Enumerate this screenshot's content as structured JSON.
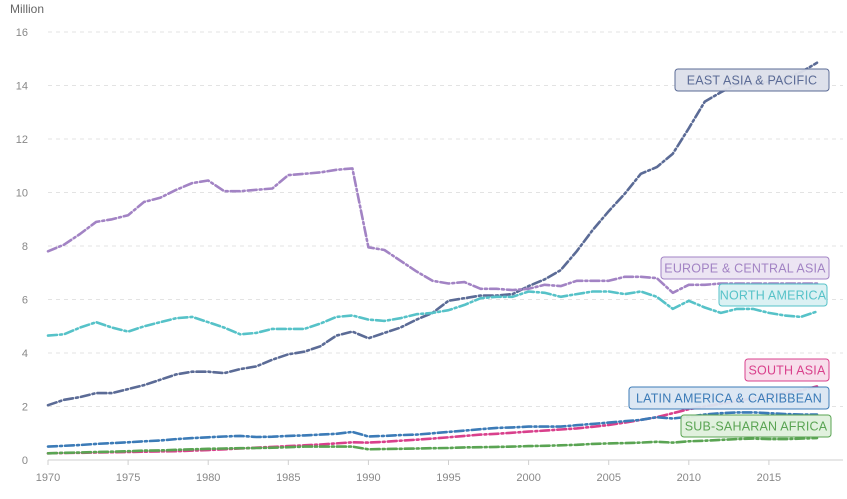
{
  "chart_data": {
    "type": "line",
    "title": "",
    "ylabel": "Million",
    "xlabel": "",
    "ylim": [
      0,
      16
    ],
    "xlim": [
      1970,
      2019
    ],
    "y_ticks": [
      0,
      2,
      4,
      6,
      8,
      10,
      12,
      14,
      16
    ],
    "x_ticks": [
      1970,
      1975,
      1980,
      1985,
      1990,
      1995,
      2000,
      2005,
      2010,
      2015
    ],
    "grid": true,
    "legend": "inline-right",
    "x": [
      1970,
      1971,
      1972,
      1973,
      1974,
      1975,
      1976,
      1977,
      1978,
      1979,
      1980,
      1981,
      1982,
      1983,
      1984,
      1985,
      1986,
      1987,
      1988,
      1989,
      1990,
      1991,
      1992,
      1993,
      1994,
      1995,
      1996,
      1997,
      1998,
      1999,
      2000,
      2001,
      2002,
      2003,
      2004,
      2005,
      2006,
      2007,
      2008,
      2009,
      2010,
      2011,
      2012,
      2013,
      2014,
      2015,
      2016,
      2017,
      2018
    ],
    "series": [
      {
        "name": "EAST ASIA & PACIFIC",
        "color": "#5b6b96",
        "label_bg": "#dcdfea",
        "values": [
          2.05,
          2.25,
          2.35,
          2.5,
          2.5,
          2.65,
          2.8,
          3.0,
          3.2,
          3.3,
          3.3,
          3.25,
          3.4,
          3.5,
          3.75,
          3.95,
          4.05,
          4.25,
          4.65,
          4.8,
          4.55,
          4.75,
          4.95,
          5.25,
          5.5,
          5.95,
          6.05,
          6.15,
          6.15,
          6.2,
          6.5,
          6.75,
          7.1,
          7.8,
          8.6,
          9.3,
          9.95,
          10.7,
          10.95,
          11.45,
          12.4,
          13.4,
          13.75,
          14.05,
          14.05,
          14.15,
          14.25,
          14.5,
          14.85
        ]
      },
      {
        "name": "EUROPE & CENTRAL ASIA",
        "color": "#a283c4",
        "label_bg": "#ebe4f2",
        "values": [
          7.8,
          8.05,
          8.45,
          8.9,
          9.0,
          9.15,
          9.65,
          9.8,
          10.1,
          10.35,
          10.45,
          10.05,
          10.05,
          10.1,
          10.15,
          10.65,
          10.7,
          10.75,
          10.85,
          10.9,
          7.95,
          7.85,
          7.45,
          7.05,
          6.7,
          6.6,
          6.65,
          6.4,
          6.4,
          6.35,
          6.4,
          6.55,
          6.5,
          6.7,
          6.7,
          6.7,
          6.85,
          6.85,
          6.8,
          6.25,
          6.55,
          6.55,
          6.6,
          6.6,
          6.6,
          6.6,
          6.6,
          6.6,
          6.6
        ]
      },
      {
        "name": "NORTH AMERICA",
        "color": "#56c2c8",
        "label_bg": "#d9f0f2",
        "values": [
          4.65,
          4.7,
          4.95,
          5.15,
          4.95,
          4.8,
          5.0,
          5.15,
          5.3,
          5.35,
          5.15,
          4.95,
          4.7,
          4.75,
          4.9,
          4.9,
          4.9,
          5.1,
          5.35,
          5.4,
          5.25,
          5.2,
          5.3,
          5.45,
          5.5,
          5.6,
          5.8,
          6.05,
          6.1,
          6.1,
          6.3,
          6.25,
          6.1,
          6.2,
          6.3,
          6.3,
          6.2,
          6.3,
          6.1,
          5.65,
          5.95,
          5.7,
          5.5,
          5.65,
          5.65,
          5.5,
          5.4,
          5.35,
          5.55
        ]
      },
      {
        "name": "SOUTH ASIA",
        "color": "#d9408c",
        "label_bg": "#f7dcea",
        "values": [
          0.25,
          0.26,
          0.27,
          0.28,
          0.29,
          0.3,
          0.31,
          0.32,
          0.33,
          0.35,
          0.37,
          0.4,
          0.43,
          0.46,
          0.49,
          0.52,
          0.55,
          0.58,
          0.62,
          0.66,
          0.65,
          0.68,
          0.72,
          0.76,
          0.8,
          0.85,
          0.9,
          0.95,
          0.98,
          1.02,
          1.06,
          1.1,
          1.14,
          1.18,
          1.24,
          1.31,
          1.4,
          1.5,
          1.6,
          1.75,
          1.9,
          2.0,
          2.1,
          2.2,
          2.3,
          2.4,
          2.5,
          2.6,
          2.75
        ]
      },
      {
        "name": "LATIN AMERICA & CARIBBEAN",
        "color": "#3c7bb7",
        "label_bg": "#dae6f2",
        "values": [
          0.5,
          0.53,
          0.56,
          0.6,
          0.63,
          0.66,
          0.7,
          0.73,
          0.78,
          0.82,
          0.85,
          0.88,
          0.9,
          0.86,
          0.87,
          0.9,
          0.92,
          0.95,
          0.98,
          1.05,
          0.88,
          0.9,
          0.93,
          0.95,
          1.0,
          1.05,
          1.1,
          1.15,
          1.2,
          1.22,
          1.25,
          1.25,
          1.25,
          1.3,
          1.35,
          1.4,
          1.45,
          1.5,
          1.6,
          1.55,
          1.62,
          1.7,
          1.75,
          1.78,
          1.78,
          1.75,
          1.72,
          1.7,
          1.7
        ]
      },
      {
        "name": "SUB-SAHARAN AFRICA",
        "color": "#5aa453",
        "label_bg": "#dff0dc",
        "values": [
          0.25,
          0.27,
          0.28,
          0.3,
          0.31,
          0.33,
          0.35,
          0.36,
          0.38,
          0.4,
          0.42,
          0.43,
          0.44,
          0.45,
          0.46,
          0.48,
          0.5,
          0.5,
          0.5,
          0.5,
          0.4,
          0.41,
          0.42,
          0.43,
          0.44,
          0.45,
          0.47,
          0.48,
          0.49,
          0.5,
          0.52,
          0.53,
          0.55,
          0.57,
          0.6,
          0.62,
          0.63,
          0.65,
          0.68,
          0.65,
          0.7,
          0.72,
          0.75,
          0.78,
          0.8,
          0.78,
          0.78,
          0.8,
          0.82
        ]
      }
    ]
  }
}
